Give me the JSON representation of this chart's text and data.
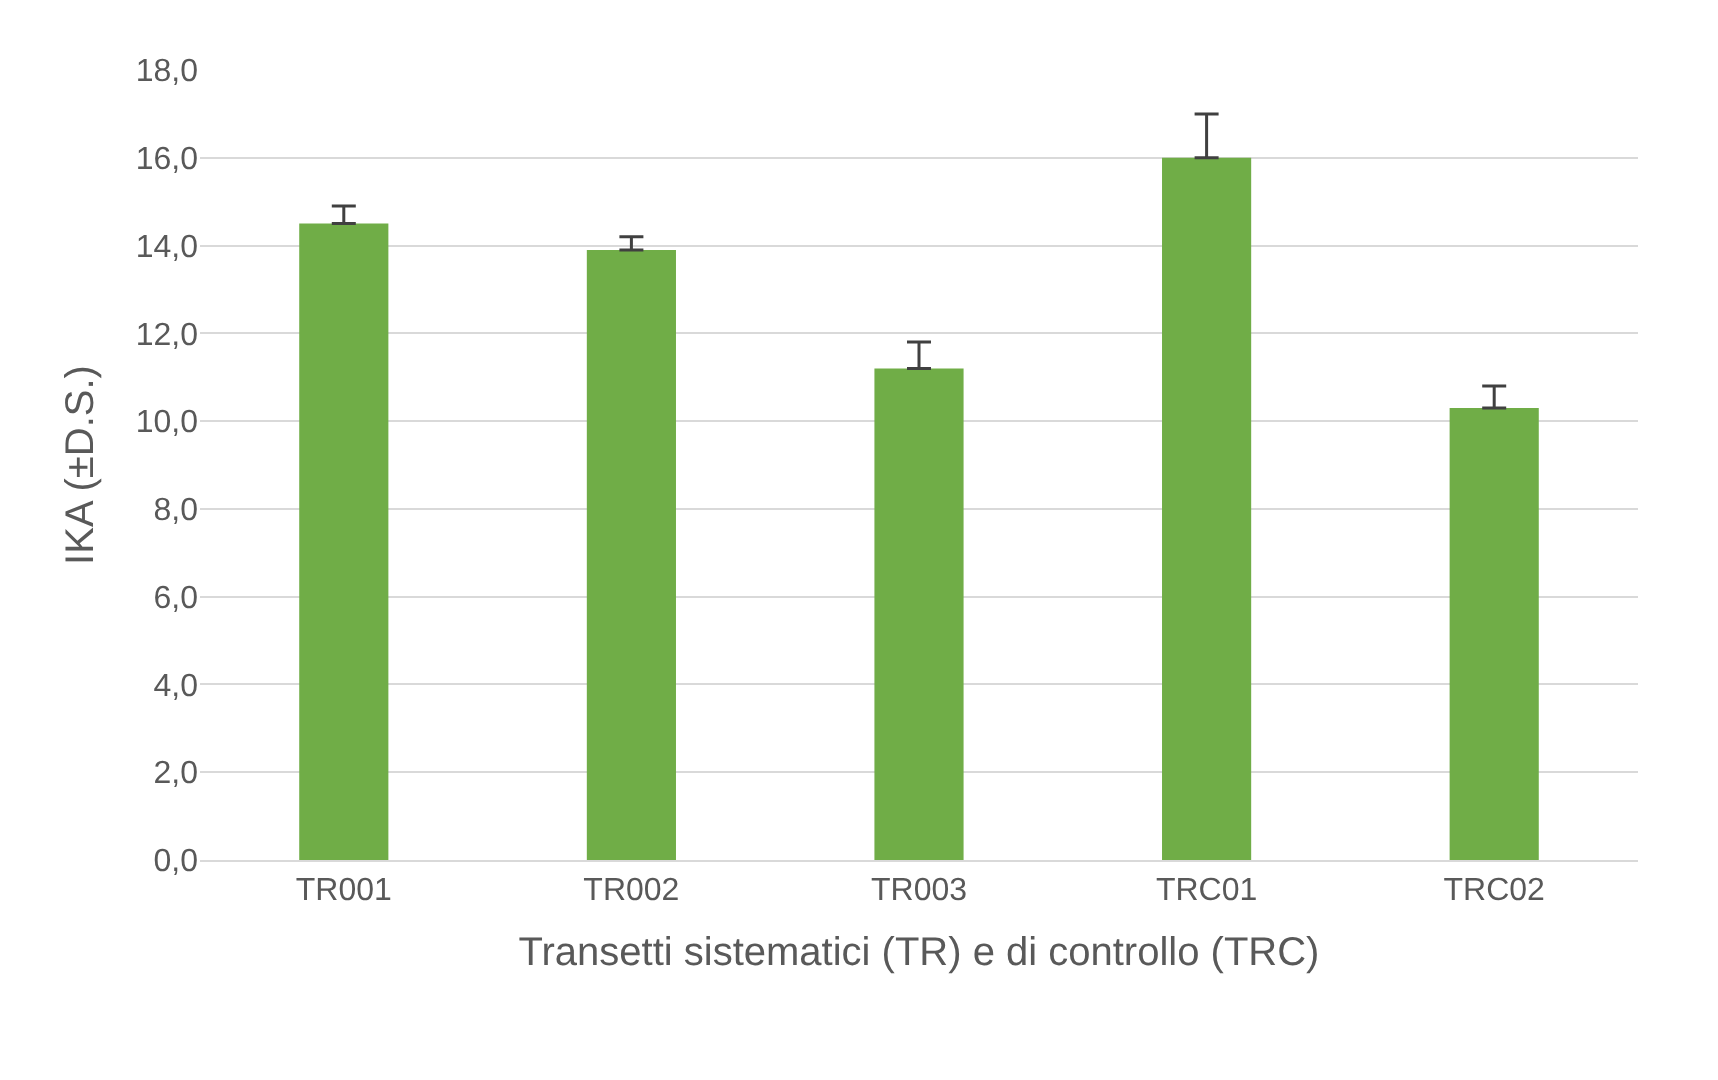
{
  "chart_data": {
    "type": "bar",
    "xlabel": "Transetti sistematici (TR) e di controllo (TRC)",
    "ylabel": "IKA (±D.S.)",
    "categories": [
      "TR001",
      "TR002",
      "TR003",
      "TRC01",
      "TRC02"
    ],
    "values": [
      14.5,
      13.9,
      11.2,
      16.0,
      10.3
    ],
    "errors": [
      [
        14.5,
        14.9
      ],
      [
        13.9,
        14.2
      ],
      [
        11.2,
        11.8
      ],
      [
        16.0,
        17.0
      ],
      [
        10.3,
        10.8
      ]
    ],
    "color": "#70ad47",
    "ylim": [
      0,
      18
    ],
    "yticks": [
      {
        "value": 0,
        "label": "0,0"
      },
      {
        "value": 2,
        "label": "2,0"
      },
      {
        "value": 4,
        "label": "4,0"
      },
      {
        "value": 6,
        "label": "6,0"
      },
      {
        "value": 8,
        "label": "8,0"
      },
      {
        "value": 10,
        "label": "10,0"
      },
      {
        "value": 12,
        "label": "12,0"
      },
      {
        "value": 14,
        "label": "14,0"
      },
      {
        "value": 16,
        "label": "16,0"
      },
      {
        "value": 18,
        "label": "18,0"
      }
    ],
    "grid": "y",
    "legend": false
  }
}
